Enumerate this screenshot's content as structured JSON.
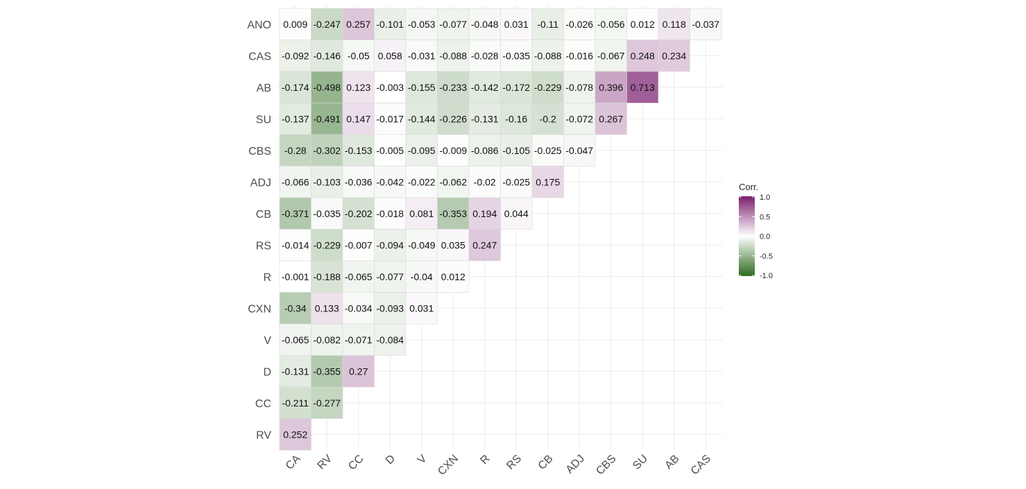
{
  "chart_data": {
    "type": "heatmap",
    "x_categories": [
      "CA",
      "RV",
      "CC",
      "D",
      "V",
      "CXN",
      "R",
      "RS",
      "CB",
      "ADJ",
      "CBS",
      "SU",
      "AB",
      "CAS"
    ],
    "y_categories": [
      "ANO",
      "CAS",
      "AB",
      "SU",
      "CBS",
      "ADJ",
      "CB",
      "RS",
      "R",
      "CXN",
      "V",
      "D",
      "CC",
      "RV"
    ],
    "values": [
      [
        0.009,
        -0.247,
        0.257,
        -0.101,
        -0.053,
        -0.077,
        -0.048,
        0.031,
        -0.11,
        -0.026,
        -0.056,
        0.012,
        0.118,
        -0.037
      ],
      [
        -0.092,
        -0.146,
        -0.05,
        0.058,
        -0.031,
        -0.088,
        -0.028,
        -0.035,
        -0.088,
        -0.016,
        -0.067,
        0.248,
        0.234
      ],
      [
        -0.174,
        -0.498,
        0.123,
        -0.003,
        -0.155,
        -0.233,
        -0.142,
        -0.172,
        -0.229,
        -0.078,
        0.396,
        0.713
      ],
      [
        -0.137,
        -0.491,
        0.147,
        -0.017,
        -0.144,
        -0.226,
        -0.131,
        -0.16,
        -0.2,
        -0.072,
        0.267
      ],
      [
        -0.28,
        -0.302,
        -0.153,
        -0.005,
        -0.095,
        -0.009,
        -0.086,
        -0.105,
        -0.025,
        -0.047
      ],
      [
        -0.066,
        -0.103,
        -0.036,
        -0.042,
        -0.022,
        -0.062,
        -0.02,
        -0.025,
        0.175
      ],
      [
        -0.371,
        -0.035,
        -0.202,
        -0.018,
        0.081,
        -0.353,
        0.194,
        0.044
      ],
      [
        -0.014,
        -0.229,
        -0.007,
        -0.094,
        -0.049,
        0.035,
        0.247
      ],
      [
        -0.001,
        -0.188,
        -0.065,
        -0.077,
        -0.04,
        0.012
      ],
      [
        -0.34,
        0.133,
        -0.034,
        -0.093,
        0.031
      ],
      [
        -0.065,
        -0.082,
        -0.071,
        -0.084
      ],
      [
        -0.131,
        -0.355,
        0.27
      ],
      [
        -0.211,
        -0.277
      ],
      [
        0.252
      ]
    ],
    "legend": {
      "title": "Corr.",
      "ticks": [
        "1.0",
        "0.5",
        "0.0",
        "-0.5",
        "-1.0"
      ],
      "placement": "right"
    },
    "color_scale": {
      "low": "#2d6a1e",
      "mid": "#ffffff",
      "high": "#7a1f6e"
    },
    "value_range": [
      -1,
      1
    ],
    "grid": true,
    "background": "#ffffff"
  }
}
